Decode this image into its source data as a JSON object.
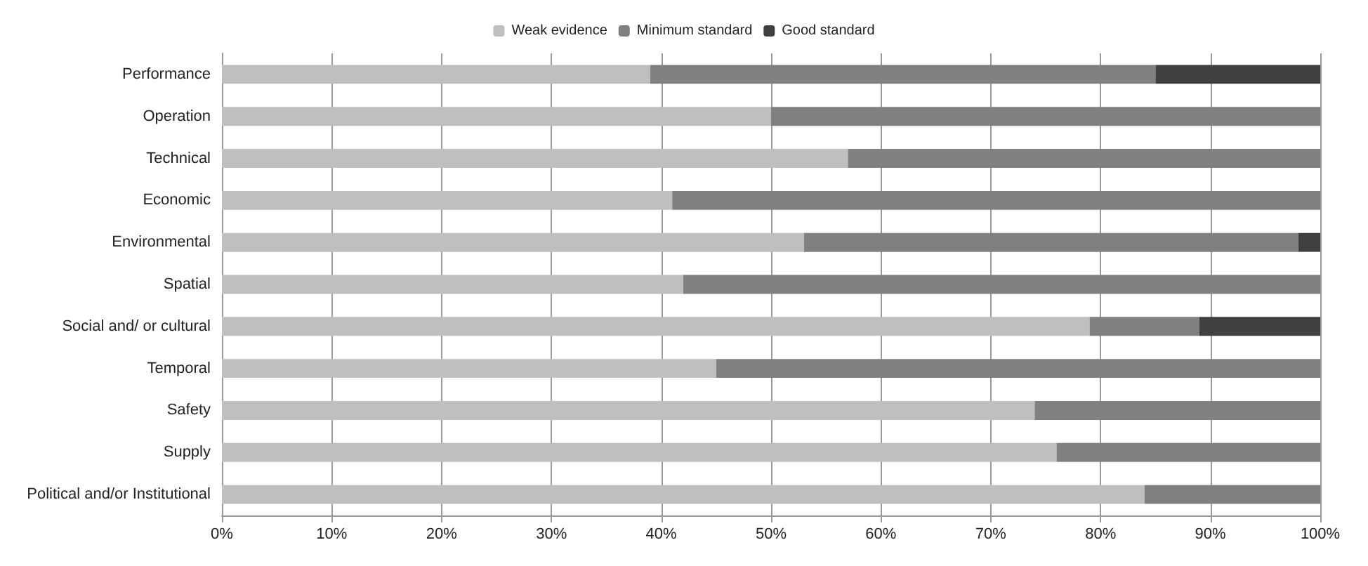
{
  "chart_data": {
    "type": "bar",
    "orientation": "horizontal",
    "stacked": true,
    "categories": [
      "Performance",
      "Operation",
      "Technical",
      "Economic",
      "Environmental",
      "Spatial",
      "Social and/ or cultural",
      "Temporal",
      "Safety",
      "Supply",
      "Political and/or Institutional"
    ],
    "series": [
      {
        "name": "Weak evidence",
        "color": "#bfbfbf",
        "values": [
          39,
          50,
          57,
          41,
          53,
          42,
          79,
          45,
          74,
          76,
          84
        ]
      },
      {
        "name": "Minimum standard",
        "color": "#808080",
        "values": [
          46,
          50,
          43,
          59,
          45,
          58,
          10,
          55,
          26,
          24,
          16
        ]
      },
      {
        "name": "Good standard",
        "color": "#404040",
        "values": [
          15,
          null,
          null,
          null,
          2,
          null,
          11,
          null,
          null,
          null,
          null
        ]
      }
    ],
    "xlim": [
      0,
      100
    ],
    "xticks": [
      {
        "value": 0,
        "label": "0%"
      },
      {
        "value": 10,
        "label": "10%"
      },
      {
        "value": 20,
        "label": "20%"
      },
      {
        "value": 30,
        "label": "30%"
      },
      {
        "value": 40,
        "label": "40%"
      },
      {
        "value": 50,
        "label": "50%"
      },
      {
        "value": 60,
        "label": "60%"
      },
      {
        "value": 70,
        "label": "70%"
      },
      {
        "value": 80,
        "label": "80%"
      },
      {
        "value": 90,
        "label": "90%"
      },
      {
        "value": 100,
        "label": "100%"
      }
    ],
    "grid": "x",
    "legend": "top"
  }
}
